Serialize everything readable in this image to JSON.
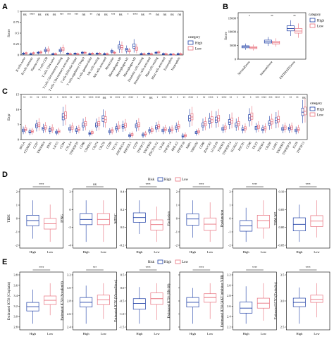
{
  "colors": {
    "High": "#1f3fa6",
    "Low": "#e8707d"
  },
  "legend": {
    "title": "category",
    "high": "High",
    "low": "Low",
    "risk_title": "Risk"
  },
  "panels": {
    "A": "A",
    "B": "B",
    "C": "C",
    "D": "D",
    "E": "E"
  },
  "chart_data": [
    {
      "panel": "A",
      "type": "box",
      "ylabel": "Score",
      "ylim": [
        0,
        1.0
      ],
      "yticks": [
        0.0,
        0.25,
        0.5,
        0.75,
        1.0
      ],
      "categories": [
        "B cells naive",
        "B cells memory",
        "Plasma cells",
        "T cells CD8",
        "T cells CD4 naive",
        "T cells CD4 memory resting",
        "T cells CD4 memory activated",
        "T cells follicular helper",
        "T cells regulatory (Tregs)",
        "T cells gamma delta",
        "NK cells resting",
        "NK cells activated",
        "Monocytes",
        "Macrophages M0",
        "Macrophages M1",
        "Macrophages M2",
        "Dendritic cells resting",
        "Dendritic cells activated",
        "Mast cells resting",
        "Mast cells activated",
        "Eosinophils",
        "Neutrophils"
      ],
      "significance": [
        "ns",
        "****",
        "ns",
        "ns",
        "ns",
        "***",
        "***",
        "***",
        "ns",
        "**",
        "ns",
        "ns",
        "***",
        "ns",
        "*",
        "****",
        "ns",
        "**",
        "ns",
        "ns",
        "ns",
        "ns"
      ],
      "series": [
        {
          "name": "High",
          "median": [
            0.03,
            0.02,
            0.05,
            0.1,
            0.02,
            0.1,
            0.03,
            0.03,
            0.05,
            0.02,
            0.03,
            0.02,
            0.08,
            0.18,
            0.12,
            0.2,
            0.02,
            0.03,
            0.05,
            0.02,
            0.01,
            0.02
          ]
        },
        {
          "name": "Low",
          "median": [
            0.04,
            0.04,
            0.06,
            0.11,
            0.02,
            0.13,
            0.02,
            0.02,
            0.05,
            0.03,
            0.03,
            0.02,
            0.05,
            0.17,
            0.09,
            0.14,
            0.02,
            0.02,
            0.06,
            0.02,
            0.01,
            0.02
          ]
        }
      ]
    },
    {
      "panel": "B",
      "type": "box",
      "ylabel": "Score",
      "ylim": [
        0,
        17000
      ],
      "yticks": [
        0,
        5000,
        10000,
        15000
      ],
      "categories": [
        "StromalScore",
        "ImmuneScore",
        "ESTIMATEScore"
      ],
      "significance": [
        "*",
        "**",
        "**"
      ],
      "series": [
        {
          "name": "High",
          "median": [
            4500,
            6400,
            11200
          ]
        },
        {
          "name": "Low",
          "median": [
            4200,
            6000,
            10300
          ]
        }
      ]
    },
    {
      "panel": "C",
      "type": "box",
      "ylabel": "Expr",
      "ylim": [
        0,
        15
      ],
      "yticks": [
        0,
        5,
        10,
        15
      ],
      "categories": [
        "BTLA",
        "CD200R1",
        "CD27",
        "TNFRSF4",
        "IDO1",
        "LAG3",
        "CD44",
        "CTLA4",
        "TNFRSF25",
        "CD86",
        "CD40LG",
        "CD274",
        "CD276",
        "CD28",
        "VTCN1",
        "ADORA2A",
        "KIR3DL1",
        "CD70",
        "TNFSF15",
        "TNFRSF8",
        "PDCD1LG2",
        "CD160",
        "TNFSF14",
        "HHLA2",
        "TNFSF18",
        "NRP1",
        "TMIGD2",
        "CD80",
        "HAVCR2",
        "LGALS9",
        "TNFSF9",
        "TNFRSF14",
        "ICOSLG",
        "PDCD1",
        "CD48",
        "TIGIT",
        "TNFSF4",
        "CD200",
        "LAIR1",
        "TNFRSF9",
        "TNFRSF18",
        "ICOS",
        "TNFSF13"
      ],
      "significance": [
        "**",
        "**",
        "**",
        "****",
        "**",
        "*",
        "****",
        "**",
        "***",
        "**",
        "****",
        "****",
        "ns",
        "**",
        "****",
        "**",
        "****",
        "*",
        "**",
        "ns",
        "*",
        "****",
        "**",
        "*",
        "**",
        "****",
        "*",
        "**",
        "****",
        "*",
        "****",
        "**",
        "*",
        "**",
        "*",
        "***",
        "****",
        "***",
        "****",
        "*",
        "**",
        "**",
        "ns"
      ],
      "series": [
        {
          "name": "High",
          "median": [
            3.0,
            2.5,
            4.5,
            3.6,
            3.1,
            2.4,
            7.5,
            3.5,
            3.1,
            4.8,
            2.0,
            4.8,
            6.9,
            2.6,
            3.7,
            4.3,
            1.3,
            4.5,
            1.5,
            2.9,
            4.0,
            3.0,
            3.0,
            3.9,
            1.1,
            7.0,
            2.3,
            4.8,
            6.1,
            6.5,
            3.5,
            5.8,
            4.8,
            3.4,
            7.2,
            3.8,
            3.4,
            5.4,
            6.3,
            3.5,
            3.6,
            3.0,
            9.1
          ]
        },
        {
          "name": "Low",
          "median": [
            3.4,
            2.7,
            4.9,
            4.0,
            3.5,
            2.7,
            8.0,
            3.9,
            3.4,
            5.2,
            2.3,
            5.2,
            6.6,
            2.9,
            4.2,
            4.7,
            1.6,
            4.9,
            1.8,
            3.1,
            4.3,
            3.4,
            3.3,
            4.3,
            1.3,
            7.5,
            2.6,
            5.2,
            6.6,
            7.0,
            3.9,
            6.2,
            5.2,
            3.7,
            7.7,
            4.2,
            3.7,
            5.9,
            6.7,
            3.9,
            3.9,
            3.4,
            9.4
          ]
        }
      ]
    },
    {
      "panel": "D",
      "type": "box",
      "x_categories": [
        "High",
        "Low"
      ],
      "subplots": [
        {
          "ylabel": "TIDE",
          "significance": "****",
          "yticks": [
            "2",
            "1",
            "0",
            "-1",
            "-2"
          ],
          "high": {
            "min": -1.6,
            "q1": -0.4,
            "median": 0.1,
            "q3": 0.6,
            "max": 2.0
          },
          "low": {
            "min": -1.9,
            "q1": -0.7,
            "median": -0.2,
            "q3": 0.3,
            "max": 1.6
          }
        },
        {
          "ylabel": "IFNG",
          "significance": "ns",
          "yticks": [
            "2",
            "0",
            "-2",
            "-4"
          ],
          "high": {
            "min": -4.0,
            "q1": -1.4,
            "median": -0.6,
            "q3": 0.3,
            "max": 2.3
          },
          "low": {
            "min": -4.0,
            "q1": -1.4,
            "median": -0.6,
            "q3": 0.3,
            "max": 2.3
          }
        },
        {
          "ylabel": "MDSC",
          "significance": "****",
          "yticks": [
            "0.4",
            "0.2",
            "0.0",
            "-0.2"
          ],
          "high": {
            "min": -0.15,
            "q1": 0.0,
            "median": 0.06,
            "q3": 0.12,
            "max": 0.28
          },
          "low": {
            "min": -0.25,
            "q1": -0.1,
            "median": -0.03,
            "q3": 0.03,
            "max": 0.2
          }
        },
        {
          "ylabel": "Exclusion",
          "significance": "****",
          "yticks": [
            "2",
            "1",
            "0",
            "-1",
            "-2"
          ],
          "high": {
            "min": -1.4,
            "q1": -0.2,
            "median": 0.4,
            "q3": 0.9,
            "max": 2.2
          },
          "low": {
            "min": -1.8,
            "q1": -0.7,
            "median": -0.1,
            "q3": 0.5,
            "max": 2.0
          }
        },
        {
          "ylabel": "Dysfunction",
          "significance": "****",
          "yticks": [
            "2",
            "1",
            "0",
            "-1",
            "-2"
          ],
          "high": {
            "min": -1.9,
            "q1": -0.9,
            "median": -0.4,
            "q3": 0.1,
            "max": 1.3
          },
          "low": {
            "min": -1.6,
            "q1": -0.6,
            "median": 0.1,
            "q3": 0.6,
            "max": 2.0
          }
        },
        {
          "ylabel": "TAM.M2",
          "significance": "****",
          "yticks": [
            "0.10",
            "0.05",
            "0.00",
            "-0.05"
          ],
          "high": {
            "min": -0.08,
            "q1": -0.03,
            "median": 0.0,
            "q3": 0.03,
            "max": 0.09
          },
          "low": {
            "min": -0.06,
            "q1": -0.01,
            "median": 0.015,
            "q3": 0.04,
            "max": 0.11
          }
        }
      ]
    },
    {
      "panel": "E",
      "type": "box",
      "x_categories": [
        "High",
        "Low"
      ],
      "subplots": [
        {
          "ylabel": "Estimated IC50 (Cisplatin)",
          "significance": "****",
          "yticks": [
            "3.8",
            "3.6",
            "3.4",
            "3.2",
            "3.0",
            "2.8"
          ],
          "high": {
            "min": 2.8,
            "q1": 3.1,
            "median": 3.2,
            "q3": 3.3,
            "max": 3.6
          },
          "low": {
            "min": 3.0,
            "q1": 3.25,
            "median": 3.35,
            "q3": 3.45,
            "max": 3.75
          }
        },
        {
          "ylabel": "Estimated IC50 (Sorafenib)",
          "significance": "***",
          "yticks": [
            "3.2",
            "3.0",
            "2.8",
            "2.6",
            "2.4"
          ],
          "high": {
            "min": 2.4,
            "q1": 2.75,
            "median": 2.85,
            "q3": 2.95,
            "max": 3.2
          },
          "low": {
            "min": 2.5,
            "q1": 2.8,
            "median": 2.9,
            "q3": 3.0,
            "max": 3.25
          }
        },
        {
          "ylabel": "Estimated IC50 (Vinorelbine)",
          "significance": "****",
          "yticks": [
            "0.5",
            "0.0",
            "-0.5",
            "-1.0",
            "-1.5"
          ],
          "high": {
            "min": -1.6,
            "q1": -0.85,
            "median": -0.55,
            "q3": -0.3,
            "max": 0.3
          },
          "low": {
            "min": -1.4,
            "q1": -0.6,
            "median": -0.3,
            "q3": 0.0,
            "max": 0.5
          }
        },
        {
          "ylabel": "Estimated IC50 (SN-38)",
          "significance": "****",
          "yticks": [
            "",
            "",
            "",
            "",
            ""
          ],
          "high": {
            "min": 0.1,
            "q1": 0.45,
            "median": 0.55,
            "q3": 0.65,
            "max": 0.85
          },
          "low": {
            "min": 0.2,
            "q1": 0.55,
            "median": 0.65,
            "q3": 0.73,
            "max": 0.95
          }
        },
        {
          "ylabel": "Estimated IC50 (AKT inhibitor VIII)",
          "significance": "****",
          "yticks": [
            "3.2",
            "3.0",
            "2.8",
            "2.6",
            "2.4",
            "2.2"
          ],
          "high": {
            "min": 2.25,
            "q1": 2.42,
            "median": 2.5,
            "q3": 2.6,
            "max": 2.85
          },
          "low": {
            "min": 2.3,
            "q1": 2.5,
            "median": 2.58,
            "q3": 2.66,
            "max": 2.9
          }
        },
        {
          "ylabel": "Estimated IC50 (Embelin)",
          "significance": "****",
          "yticks": [
            "3.5",
            "3.0",
            "2.5"
          ],
          "high": {
            "min": 2.55,
            "q1": 2.95,
            "median": 3.05,
            "q3": 3.15,
            "max": 3.4
          },
          "low": {
            "min": 2.7,
            "q1": 3.05,
            "median": 3.12,
            "q3": 3.22,
            "max": 3.5
          }
        }
      ]
    }
  ]
}
